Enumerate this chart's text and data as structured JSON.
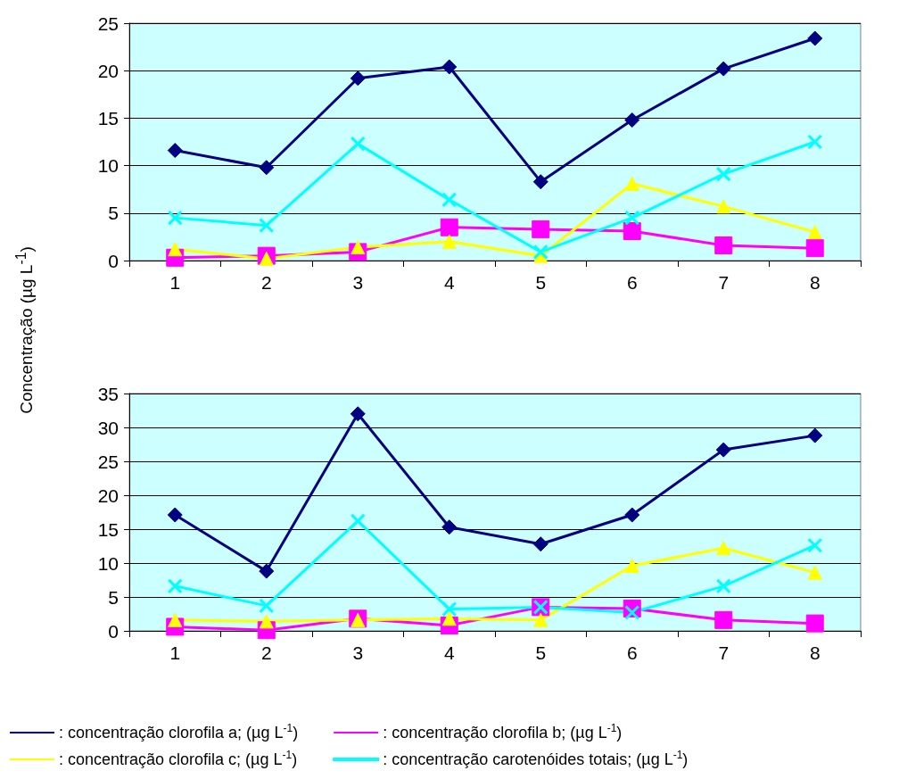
{
  "chart_data": [
    {
      "type": "line",
      "ylabel": "Concentração (µg L$^{-1}$)",
      "categories": [
        "1",
        "2",
        "3",
        "4",
        "5",
        "6",
        "7",
        "8"
      ],
      "ylim": [
        0,
        25
      ],
      "yticks": [
        0,
        5,
        10,
        15,
        20,
        25
      ],
      "grid": "y",
      "line_style": "solid",
      "series": [
        {
          "color": "#000080",
          "marker": "diamond",
          "values": [
            11.6,
            9.8,
            19.2,
            20.4,
            8.3,
            14.8,
            20.2,
            23.4
          ]
        },
        {
          "color": "#ff00ff",
          "marker": "square",
          "values": [
            0.3,
            0.5,
            0.9,
            3.5,
            3.3,
            3.1,
            1.6,
            1.3
          ]
        },
        {
          "color": "#ffff00",
          "marker": "triangle",
          "values": [
            1.2,
            0.2,
            1.4,
            2.0,
            0.5,
            8.1,
            5.7,
            3.0
          ]
        },
        {
          "color": "#00ffff",
          "marker": "cross",
          "values": [
            4.5,
            3.7,
            12.3,
            6.4,
            0.9,
            4.5,
            9.1,
            12.5
          ]
        }
      ]
    },
    {
      "type": "line",
      "categories": [
        "1",
        "2",
        "3",
        "4",
        "5",
        "6",
        "7",
        "8"
      ],
      "ylim": [
        0,
        35
      ],
      "yticks": [
        0,
        5,
        10,
        15,
        20,
        25,
        30,
        35
      ],
      "grid": "y",
      "line_style": "solid",
      "legend": "bottom",
      "series": [
        {
          "name": ": concentração clorofila a; (µg L$^{-1}$)",
          "color": "#000080",
          "marker": "diamond",
          "values": [
            17.1,
            8.8,
            32.0,
            15.3,
            12.8,
            17.1,
            26.7,
            28.8
          ]
        },
        {
          "name": ": concentração clorofila b; (µg L$^{-1}$)",
          "color": "#ff00ff",
          "marker": "square",
          "values": [
            0.6,
            0.1,
            1.8,
            0.8,
            3.5,
            3.3,
            1.6,
            1.1
          ]
        },
        {
          "name": ": concentração clorofila c; (µg L$^{-1}$)",
          "color": "#ffff00",
          "marker": "triangle",
          "values": [
            1.6,
            1.4,
            1.6,
            1.8,
            1.6,
            9.6,
            12.2,
            8.6
          ]
        },
        {
          "name": ": concentração carotenóides totais; (µg L$^{-1}$)",
          "color": "#00ffff",
          "marker": "cross",
          "values": [
            6.6,
            3.7,
            16.2,
            3.2,
            3.5,
            2.7,
            6.6,
            12.6
          ]
        }
      ]
    }
  ]
}
